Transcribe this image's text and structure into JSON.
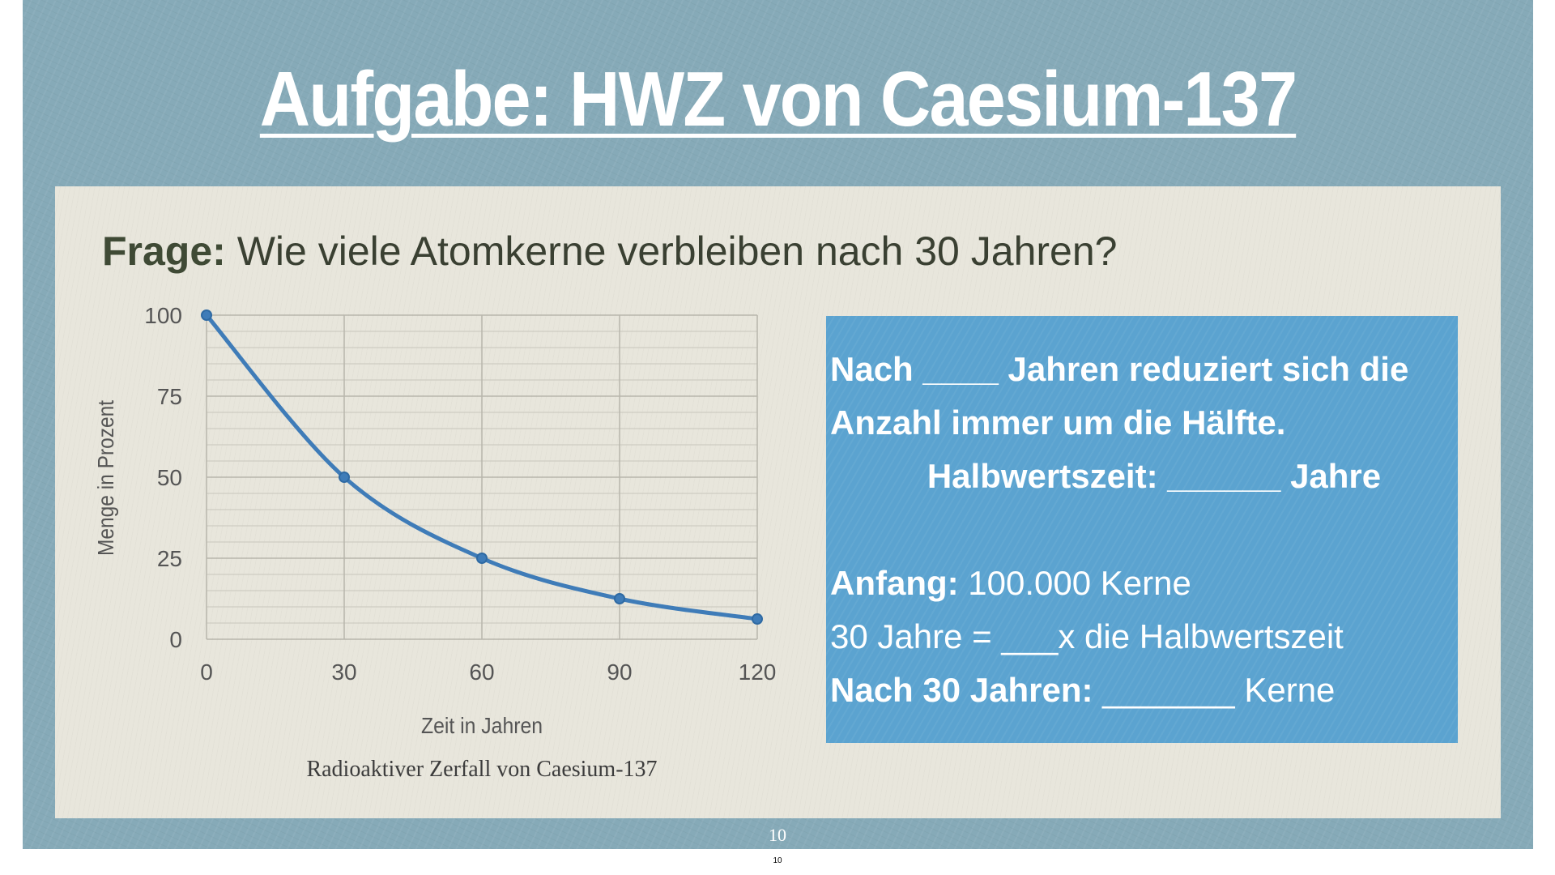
{
  "slide": {
    "title": "Aufgabe: HWZ von Caesium-137",
    "question_label": "Frage:",
    "question_text": " Wie viele Atomkerne verbleiben nach 30 Jahren?",
    "page_number": "10",
    "page_number_small": "10"
  },
  "infobox": {
    "line1": "Nach ____ Jahren reduziert sich die",
    "line2": "Anzahl immer um die Hälfte.",
    "line3": "Halbwertszeit: ______ Jahre",
    "start_label": "Anfang:",
    "start_value": " 100.000 Kerne",
    "line5": "30 Jahre = ___x die Halbwertszeit",
    "after_label": "Nach 30 Jahren:",
    "after_value": " _______ Kerne"
  },
  "colors": {
    "background": "#86aab8",
    "panel": "#e8e6dc",
    "infobox": "#5ba3d0",
    "series_line": "#3f7cb8",
    "title_text": "#ffffff"
  },
  "chart_data": {
    "type": "line",
    "title": "Radioaktiver Zerfall von Caesium-137",
    "xlabel": "Zeit in Jahren",
    "ylabel": "Menge in Prozent",
    "x": [
      0,
      30,
      60,
      90,
      120
    ],
    "xticks": [
      "0",
      "30",
      "60",
      "90",
      "120"
    ],
    "yticks": [
      "0",
      "25",
      "50",
      "75",
      "100"
    ],
    "xlim": [
      0,
      120
    ],
    "ylim": [
      0,
      100
    ],
    "series": [
      {
        "values": [
          100,
          50,
          25,
          12.5,
          6.25
        ]
      }
    ],
    "grid": true,
    "smooth": true
  }
}
